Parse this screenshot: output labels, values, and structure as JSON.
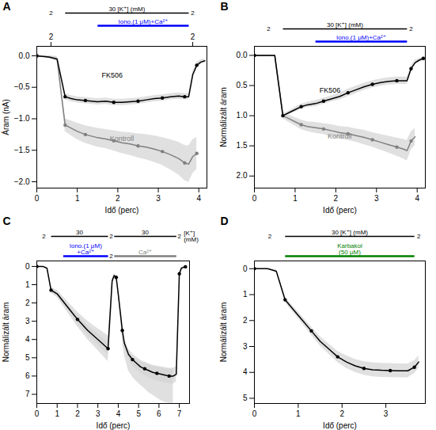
{
  "chart_data": [
    {
      "type": "line",
      "title": "A",
      "xlabel": "Idő (perc)",
      "ylabel": "Áram (nA)",
      "xlim": [
        0,
        4.2
      ],
      "ylim": [
        -2.1,
        0.15
      ],
      "xticks": [
        0,
        1,
        2,
        3,
        4
      ],
      "yticks": [
        {
          "value": 0,
          "label": "0.0"
        },
        {
          "value": -0.5,
          "label": "−0.5"
        },
        {
          "value": -1.0,
          "label": "−1.0"
        },
        {
          "value": -1.5,
          "label": "−1.5"
        },
        {
          "value": -2.0,
          "label": "−2.0"
        }
      ],
      "x2ticks": [
        {
          "value": 0.35,
          "label": "2"
        },
        {
          "value": 3.85,
          "label": "2"
        }
      ],
      "series": [
        {
          "color": "gray",
          "marker": "o",
          "x": [
            0.0,
            0.3,
            0.5,
            0.7,
            0.85,
            1.0,
            1.2,
            1.5,
            1.7,
            1.9,
            2.1,
            2.3,
            2.5,
            2.7,
            2.9,
            3.1,
            3.3,
            3.5,
            3.65,
            3.75,
            3.85,
            3.95
          ],
          "values": [
            0.0,
            -0.02,
            -0.05,
            -1.1,
            -1.15,
            -1.2,
            -1.25,
            -1.3,
            -1.32,
            -1.35,
            -1.38,
            -1.4,
            -1.43,
            -1.45,
            -1.48,
            -1.52,
            -1.57,
            -1.63,
            -1.7,
            -1.72,
            -1.6,
            -1.55
          ],
          "error": [
            0.0,
            0.02,
            0.04,
            0.1,
            0.12,
            0.13,
            0.14,
            0.15,
            0.15,
            0.16,
            0.17,
            0.18,
            0.19,
            0.2,
            0.21,
            0.22,
            0.24,
            0.26,
            0.28,
            0.29,
            0.27,
            0.25
          ]
        },
        {
          "color": "black",
          "marker": "o",
          "x": [
            0.0,
            0.3,
            0.5,
            0.7,
            0.85,
            1.0,
            1.2,
            1.5,
            1.7,
            1.9,
            2.1,
            2.3,
            2.5,
            2.7,
            2.9,
            3.1,
            3.3,
            3.5,
            3.65,
            3.75,
            3.85,
            3.95,
            4.05,
            4.15
          ],
          "values": [
            0.0,
            -0.02,
            -0.05,
            -0.65,
            -0.68,
            -0.7,
            -0.71,
            -0.73,
            -0.72,
            -0.74,
            -0.74,
            -0.73,
            -0.72,
            -0.7,
            -0.68,
            -0.67,
            -0.65,
            -0.64,
            -0.65,
            -0.65,
            -0.3,
            -0.15,
            -0.1,
            -0.08
          ],
          "error": [
            0.0,
            0.02,
            0.03,
            0.05,
            0.05,
            0.05,
            0.05,
            0.05,
            0.05,
            0.05,
            0.05,
            0.05,
            0.05,
            0.05,
            0.05,
            0.05,
            0.05,
            0.05,
            0.05,
            0.05,
            0.05,
            0.05,
            0.04,
            0.03
          ]
        }
      ],
      "protocol": [
        {
          "x": [
            0.7,
            3.75
          ],
          "color": "black",
          "label": "30 [K⁺] (mM)",
          "row": 1
        },
        {
          "x": [
            1.5,
            3.75
          ],
          "color": "blue",
          "label": "Iono.(1 μM)+Ca²⁺",
          "row": 2
        }
      ],
      "annotations": [
        {
          "text": "2",
          "x": 0.35,
          "row": 1
        },
        {
          "text": "2",
          "x": 3.85,
          "row": 1
        },
        {
          "text": "FK506",
          "x": 1.6,
          "y": -0.35,
          "color": "black"
        },
        {
          "text": "Kontroll",
          "x": 1.8,
          "y": -1.35,
          "color": "gray"
        }
      ]
    },
    {
      "type": "line",
      "title": "B",
      "xlabel": "Idő (perc)",
      "ylabel": "Normálizált áram",
      "xlim": [
        0,
        4.2
      ],
      "ylim": [
        2.2,
        -0.15
      ],
      "xticks": [
        0,
        1,
        2,
        3,
        4
      ],
      "yticks": [
        {
          "value": 0,
          "label": "0.0"
        },
        {
          "value": 0.5,
          "label": "0.5"
        },
        {
          "value": 1.0,
          "label": "1.0"
        },
        {
          "value": 1.5,
          "label": "1.5"
        },
        {
          "value": 2.0,
          "label": "2.0"
        }
      ],
      "series": [
        {
          "color": "gray",
          "marker": "o",
          "x": [
            0.0,
            0.3,
            0.5,
            0.7,
            0.85,
            1.0,
            1.15,
            1.3,
            1.5,
            1.7,
            1.9,
            2.1,
            2.3,
            2.5,
            2.7,
            2.9,
            3.1,
            3.3,
            3.5,
            3.65,
            3.75,
            3.85,
            3.95
          ],
          "values": [
            0.0,
            0.0,
            0.0,
            1.0,
            1.05,
            1.1,
            1.15,
            1.18,
            1.2,
            1.22,
            1.25,
            1.28,
            1.3,
            1.33,
            1.36,
            1.4,
            1.44,
            1.48,
            1.52,
            1.55,
            1.58,
            1.42,
            1.35
          ],
          "error": [
            0.0,
            0.0,
            0.0,
            0.05,
            0.06,
            0.07,
            0.08,
            0.08,
            0.09,
            0.09,
            0.1,
            0.1,
            0.11,
            0.11,
            0.12,
            0.12,
            0.13,
            0.14,
            0.15,
            0.16,
            0.17,
            0.15,
            0.14
          ]
        },
        {
          "color": "black",
          "marker": "o",
          "x": [
            0.0,
            0.3,
            0.5,
            0.7,
            0.85,
            1.0,
            1.15,
            1.3,
            1.5,
            1.7,
            1.9,
            2.1,
            2.3,
            2.5,
            2.7,
            2.9,
            3.1,
            3.3,
            3.5,
            3.65,
            3.75,
            3.85,
            3.95,
            4.05,
            4.15
          ],
          "values": [
            0.0,
            0.0,
            0.0,
            1.0,
            0.95,
            0.9,
            0.85,
            0.82,
            0.8,
            0.76,
            0.72,
            0.68,
            0.62,
            0.57,
            0.52,
            0.48,
            0.45,
            0.43,
            0.42,
            0.42,
            0.42,
            0.22,
            0.12,
            0.08,
            0.05
          ],
          "error": [
            0.0,
            0.0,
            0.0,
            0.03,
            0.03,
            0.04,
            0.04,
            0.04,
            0.05,
            0.05,
            0.05,
            0.06,
            0.06,
            0.06,
            0.06,
            0.06,
            0.06,
            0.06,
            0.06,
            0.06,
            0.06,
            0.05,
            0.04,
            0.03,
            0.02
          ]
        }
      ],
      "protocol": [
        {
          "x": [
            0.7,
            3.75
          ],
          "color": "black",
          "label": "30 [K⁺] (mM)",
          "row": 1
        },
        {
          "x": [
            1.5,
            3.75
          ],
          "color": "blue",
          "label": "Iono.(1 μM)+Ca²⁺",
          "row": 2
        }
      ],
      "annotations": [
        {
          "text": "2",
          "x": 0.35,
          "row": 1
        },
        {
          "text": "2",
          "x": 3.85,
          "row": 1
        },
        {
          "text": "FK506",
          "x": 1.6,
          "y": 0.62,
          "color": "black"
        },
        {
          "text": "Kontroll",
          "x": 1.8,
          "y": 1.38,
          "color": "gray"
        }
      ]
    },
    {
      "type": "line",
      "title": "C",
      "xlabel": "Idő (perc)",
      "ylabel": "Normálizált áram",
      "xlim": [
        0,
        7.5
      ],
      "ylim": [
        7.5,
        -0.3
      ],
      "xticks": [
        0,
        1,
        2,
        3,
        4,
        5,
        6,
        7
      ],
      "yticks": [
        0,
        1,
        2,
        3,
        4,
        5,
        6,
        7
      ],
      "series": [
        {
          "color": "gray",
          "line_style": "none",
          "x": [
            0.0,
            0.3,
            0.5,
            0.7,
            1.0,
            1.5,
            2.0,
            2.5,
            3.0,
            3.5,
            3.7,
            3.8,
            3.9,
            4.0,
            4.1,
            4.2,
            4.3,
            4.5,
            4.7,
            4.9,
            5.1,
            5.3,
            5.5,
            5.7,
            5.9,
            6.1,
            6.3,
            6.5,
            6.7
          ],
          "values": [
            0.0,
            0.0,
            0.1,
            1.3,
            1.5,
            2.2,
            2.9,
            3.5,
            4.0,
            4.5,
            0.8,
            0.5,
            0.6,
            1.5,
            2.5,
            3.8,
            4.5,
            5.2,
            5.5,
            5.7,
            5.85,
            6.0,
            6.15,
            6.25,
            6.35,
            6.45,
            6.52,
            6.55,
            6.55
          ],
          "error": [
            0.0,
            0.0,
            0.05,
            0.15,
            0.2,
            0.3,
            0.4,
            0.5,
            0.6,
            0.7,
            0.15,
            0.1,
            0.1,
            0.15,
            0.2,
            0.3,
            0.4,
            0.5,
            0.55,
            0.6,
            0.65,
            0.7,
            0.75,
            0.8,
            0.85,
            0.9,
            0.92,
            0.93,
            0.93
          ]
        },
        {
          "color": "black",
          "marker": "o",
          "x": [
            0.0,
            0.3,
            0.5,
            0.7,
            1.0,
            1.5,
            2.0,
            2.5,
            3.0,
            3.5,
            3.7,
            3.8,
            3.9,
            4.0,
            4.1,
            4.2,
            4.3,
            4.5,
            4.7,
            4.9,
            5.1,
            5.3,
            5.5,
            5.7,
            5.9,
            6.1,
            6.3,
            6.5,
            6.7,
            6.85,
            7.0,
            7.1,
            7.2,
            7.3
          ],
          "values": [
            0.0,
            0.0,
            0.1,
            1.3,
            1.5,
            2.2,
            2.9,
            3.5,
            4.0,
            4.5,
            0.8,
            0.5,
            0.6,
            1.5,
            2.5,
            3.5,
            4.2,
            4.8,
            5.1,
            5.3,
            5.5,
            5.6,
            5.7,
            5.8,
            5.85,
            5.9,
            5.95,
            6.0,
            6.0,
            5.9,
            0.4,
            0.1,
            0.05,
            0.02
          ],
          "error": [
            0.0,
            0.0,
            0.05,
            0.1,
            0.1,
            0.15,
            0.2,
            0.25,
            0.3,
            0.35,
            0.1,
            0.08,
            0.08,
            0.1,
            0.15,
            0.2,
            0.25,
            0.3,
            0.32,
            0.34,
            0.36,
            0.37,
            0.38,
            0.39,
            0.4,
            0.41,
            0.42,
            0.43,
            0.44,
            0.43,
            0.1,
            0.05,
            0.03,
            0.02
          ]
        }
      ],
      "protocol": [
        {
          "x": [
            0.7,
            3.5
          ],
          "color": "black",
          "label": "30",
          "row": 1
        },
        {
          "x": [
            3.8,
            6.85
          ],
          "color": "black",
          "label": "30",
          "row": 1
        },
        {
          "x": [
            1.3,
            3.5
          ],
          "color": "blue",
          "label": "Iono.(1 μM)\n+Ca²⁺",
          "row": 2
        },
        {
          "x": [
            3.8,
            6.85
          ],
          "color": "gray",
          "label": "Ca²⁺",
          "row": 2
        }
      ],
      "annotations": [
        {
          "text": "[K⁺]\n(mM)",
          "x": 7.1,
          "row": 1,
          "align": "left"
        },
        {
          "text": "2",
          "x": 0.35,
          "row": 1
        },
        {
          "text": "2",
          "x": 3.65,
          "row": 1
        },
        {
          "text": "2",
          "x": 3.65,
          "row": 2
        },
        {
          "text": "2",
          "x": 7.0,
          "row": 1
        }
      ]
    },
    {
      "type": "line",
      "title": "D",
      "xlabel": "Idő (perc)",
      "ylabel": "Normálizált áram",
      "xlim": [
        0,
        3.9
      ],
      "ylim": [
        5.2,
        -0.3
      ],
      "xticks": [
        0,
        1,
        2,
        3
      ],
      "yticks": [
        0,
        1,
        2,
        3,
        4,
        5
      ],
      "series": [
        {
          "color": "black",
          "marker": "o",
          "x": [
            0.0,
            0.3,
            0.5,
            0.7,
            0.9,
            1.1,
            1.3,
            1.5,
            1.7,
            1.9,
            2.1,
            2.3,
            2.5,
            2.7,
            2.9,
            3.1,
            3.3,
            3.5,
            3.65,
            3.75
          ],
          "values": [
            0.0,
            0.0,
            0.1,
            1.2,
            1.6,
            2.0,
            2.4,
            2.8,
            3.1,
            3.4,
            3.6,
            3.75,
            3.85,
            3.9,
            3.92,
            3.93,
            3.94,
            3.94,
            3.8,
            3.6
          ],
          "error": [
            0.0,
            0.0,
            0.05,
            0.1,
            0.12,
            0.14,
            0.16,
            0.18,
            0.2,
            0.22,
            0.24,
            0.25,
            0.26,
            0.27,
            0.27,
            0.27,
            0.27,
            0.27,
            0.25,
            0.23
          ]
        }
      ],
      "protocol": [
        {
          "x": [
            0.7,
            3.65
          ],
          "color": "black",
          "label": "30 [K⁺] (mM)",
          "row": 1
        },
        {
          "x": [
            0.7,
            3.65
          ],
          "color": "green",
          "label": "Karbakol\n(50 μM)",
          "row": 2
        }
      ],
      "annotations": [
        {
          "text": "2",
          "x": 0.35,
          "row": 1
        },
        {
          "text": "2",
          "x": 3.75,
          "row": 1
        }
      ]
    }
  ]
}
